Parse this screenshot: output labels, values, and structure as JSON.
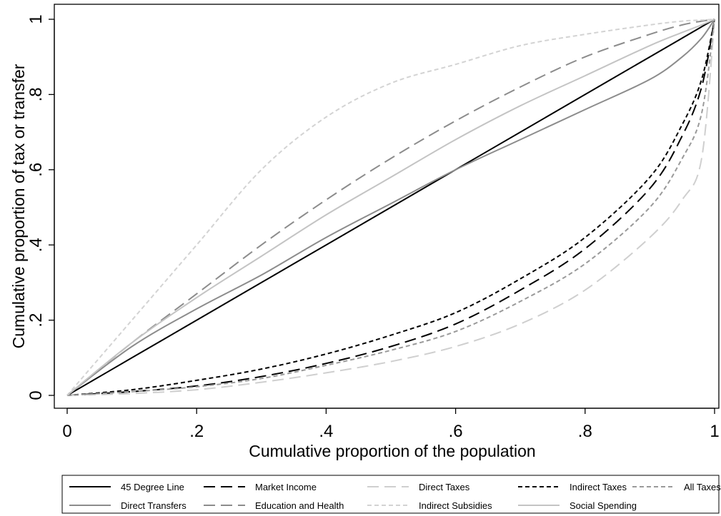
{
  "chart_data": {
    "type": "line",
    "xlabel": "Cumulative proportion of the population",
    "ylabel": "Cumulative proportion of tax or transfer",
    "xlim": [
      0,
      1
    ],
    "ylim": [
      0,
      1
    ],
    "x_ticks": [
      0,
      0.2,
      0.4,
      0.6,
      0.8,
      1
    ],
    "x_tick_labels": [
      "0",
      ".2",
      ".4",
      ".6",
      ".8",
      "1"
    ],
    "y_ticks": [
      0,
      0.2,
      0.4,
      0.6,
      0.8,
      1
    ],
    "y_tick_labels": [
      "0",
      ".2",
      ".4",
      ".6",
      ".8",
      "1"
    ],
    "grid": false,
    "legend_position": "bottom",
    "x": [
      0,
      0.1,
      0.2,
      0.3,
      0.4,
      0.5,
      0.6,
      0.7,
      0.8,
      0.9,
      0.95,
      0.98,
      1
    ],
    "series": [
      {
        "name": "45 Degree Line",
        "color": "#000000",
        "dash": "solid",
        "values": [
          0,
          0.1,
          0.2,
          0.3,
          0.4,
          0.5,
          0.6,
          0.7,
          0.8,
          0.9,
          0.95,
          0.98,
          1
        ]
      },
      {
        "name": "Market Income",
        "color": "#000000",
        "dash": "long-dash",
        "values": [
          0,
          0.01,
          0.025,
          0.05,
          0.085,
          0.13,
          0.19,
          0.28,
          0.39,
          0.55,
          0.69,
          0.82,
          1
        ]
      },
      {
        "name": "Direct Taxes",
        "color": "#cfcfcf",
        "dash": "long-dash",
        "values": [
          0,
          0.005,
          0.015,
          0.035,
          0.06,
          0.09,
          0.13,
          0.19,
          0.28,
          0.42,
          0.52,
          0.63,
          1
        ]
      },
      {
        "name": "Indirect Taxes",
        "color": "#000000",
        "dash": "short-dash",
        "values": [
          0,
          0.015,
          0.04,
          0.07,
          0.11,
          0.16,
          0.22,
          0.31,
          0.42,
          0.58,
          0.72,
          0.84,
          1
        ]
      },
      {
        "name": "All Taxes",
        "color": "#9a9a9a",
        "dash": "short-dash",
        "values": [
          0,
          0.01,
          0.023,
          0.045,
          0.08,
          0.12,
          0.17,
          0.25,
          0.35,
          0.5,
          0.63,
          0.75,
          1
        ]
      },
      {
        "name": "Direct Transfers",
        "color": "#8c8c8c",
        "dash": "solid",
        "values": [
          0,
          0.13,
          0.23,
          0.32,
          0.42,
          0.51,
          0.6,
          0.68,
          0.76,
          0.84,
          0.9,
          0.95,
          1
        ]
      },
      {
        "name": "Education and Health",
        "color": "#8c8c8c",
        "dash": "long-dash",
        "values": [
          0,
          0.14,
          0.27,
          0.4,
          0.52,
          0.63,
          0.73,
          0.82,
          0.9,
          0.96,
          0.985,
          0.995,
          1
        ]
      },
      {
        "name": "Indirect Subsidies",
        "color": "#d3d3d3",
        "dash": "short-dash",
        "values": [
          0,
          0.2,
          0.4,
          0.6,
          0.74,
          0.83,
          0.88,
          0.93,
          0.96,
          0.985,
          0.995,
          0.998,
          1
        ]
      },
      {
        "name": "Social Spending",
        "color": "#c4c4c4",
        "dash": "solid",
        "values": [
          0,
          0.14,
          0.26,
          0.37,
          0.48,
          0.58,
          0.68,
          0.77,
          0.85,
          0.93,
          0.965,
          0.985,
          1
        ]
      }
    ]
  }
}
